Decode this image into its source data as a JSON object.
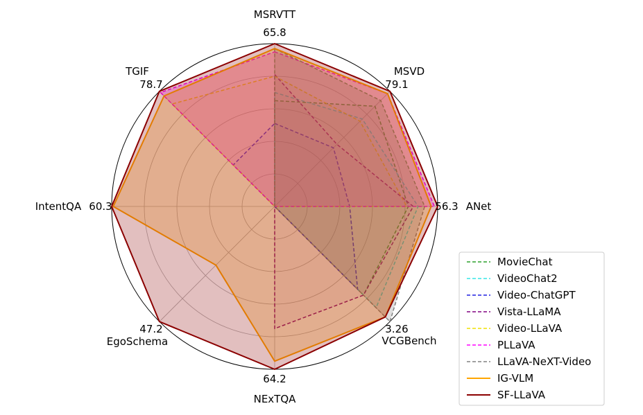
{
  "chart_data": {
    "type": "radar",
    "axes": [
      {
        "name": "MSRVTT",
        "max_label": "65.8"
      },
      {
        "name": "MSVD",
        "max_label": "79.1"
      },
      {
        "name": "ANet",
        "max_label": "56.3"
      },
      {
        "name": "VCGBench",
        "max_label": "3.26"
      },
      {
        "name": "NExTQA",
        "max_label": "64.2"
      },
      {
        "name": "EgoSchema",
        "max_label": "47.2"
      },
      {
        "name": "IntentQA",
        "max_label": "60.3"
      },
      {
        "name": "TGIF",
        "max_label": "78.7"
      }
    ],
    "grid_levels": [
      0.2,
      0.4,
      0.6,
      0.8
    ],
    "legend_position": "lower-right",
    "series": [
      {
        "name": "MovieChat",
        "color": "#2ca02c",
        "dash": true,
        "fill": false,
        "values": [
          0.65,
          0.87,
          0.82,
          0.77,
          0,
          0,
          0,
          0
        ]
      },
      {
        "name": "VideoChat2",
        "color": "#33e5e5",
        "dash": true,
        "fill": false,
        "values": [
          0.7,
          0.76,
          0.88,
          0.88,
          0,
          0,
          0,
          0
        ]
      },
      {
        "name": "Video-ChatGPT",
        "color": "#1f1fe0",
        "dash": true,
        "fill": false,
        "values": [
          0.51,
          0.51,
          0.46,
          0.72,
          0,
          0,
          0,
          0.36
        ]
      },
      {
        "name": "Vista-LLaMA",
        "color": "#800080",
        "dash": true,
        "fill": false,
        "values": [
          0.81,
          0.54,
          0.85,
          0.77,
          0.75,
          0,
          0,
          0
        ]
      },
      {
        "name": "Video-LLaVA",
        "color": "#f0e000",
        "dash": true,
        "fill": false,
        "values": [
          0.8,
          0.74,
          0.81,
          0,
          0,
          0,
          0,
          0.89
        ]
      },
      {
        "name": "PLLaVA",
        "color": "#ff00ff",
        "dash": true,
        "fill": true,
        "values": [
          0.95,
          0.98,
          0.98,
          0,
          0,
          0,
          0,
          0.99
        ]
      },
      {
        "name": "LLaVA-NeXT-Video",
        "color": "#808080",
        "dash": true,
        "fill": true,
        "values": [
          0.97,
          0.92,
          0.92,
          1.0,
          0,
          0,
          0,
          0
        ]
      },
      {
        "name": "IG-VLM",
        "color": "#ffa500",
        "dash": false,
        "fill": true,
        "values": [
          0.97,
          0.98,
          0.96,
          0.96,
          0.95,
          0.51,
          0.99,
          0.96
        ]
      },
      {
        "name": "SF-LLaVA",
        "color": "#8b0000",
        "dash": false,
        "fill": true,
        "values": [
          1.0,
          1.0,
          1.0,
          0.96,
          1.0,
          1.0,
          1.0,
          1.0
        ]
      }
    ]
  }
}
